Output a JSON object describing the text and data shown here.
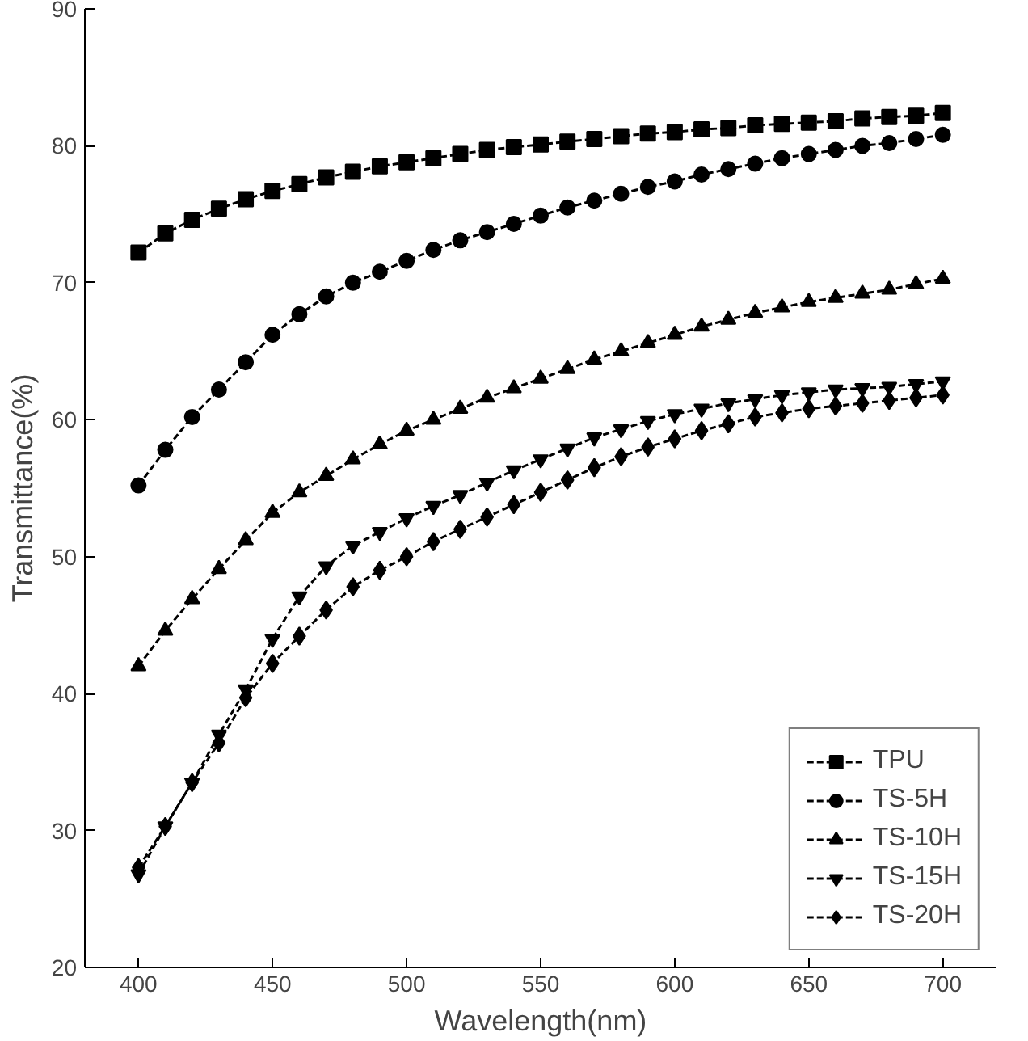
{
  "chart_data": {
    "type": "line",
    "xlabel": "Wavelength(nm)",
    "ylabel": "Transmittance(%)",
    "x": [
      400,
      410,
      420,
      430,
      440,
      450,
      460,
      470,
      480,
      490,
      500,
      510,
      520,
      530,
      540,
      550,
      560,
      570,
      580,
      590,
      600,
      610,
      620,
      630,
      640,
      650,
      660,
      670,
      680,
      690,
      700
    ],
    "xlim": [
      380,
      720
    ],
    "ylim": [
      20,
      90
    ],
    "xticks": [
      400,
      450,
      500,
      550,
      600,
      650,
      700
    ],
    "yticks": [
      20,
      30,
      40,
      50,
      60,
      70,
      80,
      90
    ],
    "grid": false,
    "legend": "bottom right",
    "line_style": "dashed",
    "series": [
      {
        "name": "TPU",
        "color": "#000000",
        "marker": "square",
        "values": [
          72.2,
          73.6,
          74.6,
          75.4,
          76.1,
          76.7,
          77.2,
          77.7,
          78.1,
          78.5,
          78.8,
          79.1,
          79.4,
          79.7,
          79.9,
          80.1,
          80.3,
          80.5,
          80.7,
          80.9,
          81.0,
          81.2,
          81.3,
          81.5,
          81.6,
          81.7,
          81.8,
          82.0,
          82.1,
          82.2,
          82.4
        ]
      },
      {
        "name": "TS-5H",
        "color": "#000000",
        "marker": "circle",
        "values": [
          55.2,
          57.8,
          60.2,
          62.2,
          64.2,
          66.2,
          67.7,
          69.0,
          70.0,
          70.8,
          71.6,
          72.4,
          73.1,
          73.7,
          74.3,
          74.9,
          75.5,
          76.0,
          76.5,
          77.0,
          77.4,
          77.9,
          78.3,
          78.7,
          79.1,
          79.4,
          79.7,
          80.0,
          80.2,
          80.5,
          80.8
        ]
      },
      {
        "name": "TS-10H",
        "color": "#000000",
        "marker": "triangle",
        "values": [
          42.0,
          44.6,
          46.9,
          49.1,
          51.2,
          53.2,
          54.7,
          55.9,
          57.1,
          58.2,
          59.2,
          60.0,
          60.8,
          61.6,
          62.3,
          63.0,
          63.7,
          64.4,
          65.0,
          65.6,
          66.2,
          66.8,
          67.3,
          67.8,
          68.2,
          68.6,
          68.9,
          69.2,
          69.5,
          69.9,
          70.3
        ]
      },
      {
        "name": "TS-15H",
        "color": "#000000",
        "marker": "triangle",
        "values": [
          26.8,
          30.3,
          33.5,
          37.0,
          40.3,
          44.0,
          47.1,
          49.3,
          50.8,
          51.8,
          52.8,
          53.7,
          54.5,
          55.4,
          56.3,
          57.1,
          57.9,
          58.7,
          59.3,
          59.9,
          60.4,
          60.8,
          61.2,
          61.5,
          61.8,
          62.0,
          62.2,
          62.3,
          62.4,
          62.6,
          62.8
        ]
      },
      {
        "name": "TS-20H",
        "color": "#000000",
        "marker": "diamond",
        "values": [
          27.3,
          30.3,
          33.5,
          36.4,
          39.7,
          42.2,
          44.2,
          46.1,
          47.8,
          49.0,
          50.0,
          51.1,
          52.0,
          52.9,
          53.8,
          54.7,
          55.6,
          56.5,
          57.3,
          58.0,
          58.6,
          59.2,
          59.7,
          60.2,
          60.5,
          60.8,
          61.0,
          61.2,
          61.4,
          61.6,
          61.8
        ]
      }
    ]
  }
}
